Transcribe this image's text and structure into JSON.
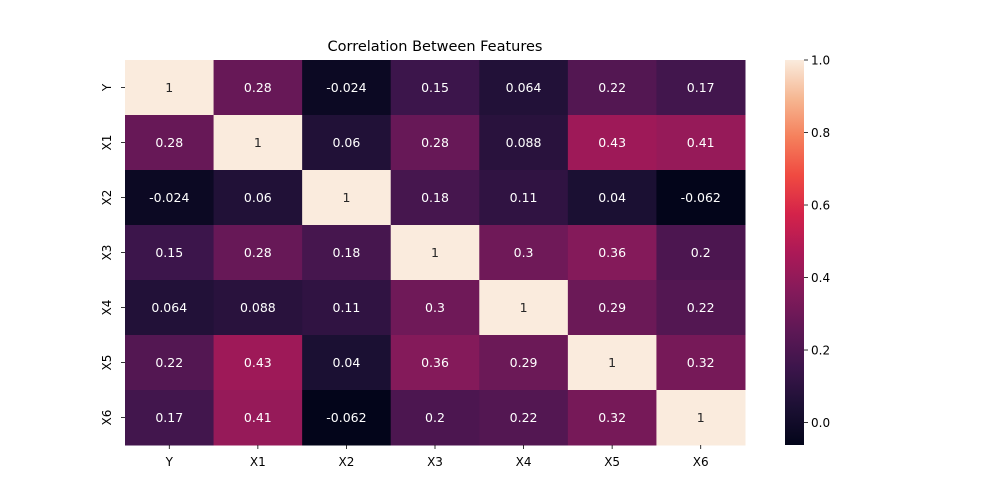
{
  "chart_data": {
    "type": "heatmap",
    "title": "Correlation Between Features",
    "xlabel": "",
    "ylabel": "",
    "x_categories": [
      "Y",
      "X1",
      "X2",
      "X3",
      "X4",
      "X5",
      "X6"
    ],
    "y_categories": [
      "Y",
      "X1",
      "X2",
      "X3",
      "X4",
      "X5",
      "X6"
    ],
    "values": [
      [
        1,
        0.28,
        -0.024,
        0.15,
        0.064,
        0.22,
        0.17
      ],
      [
        0.28,
        1,
        0.06,
        0.28,
        0.088,
        0.43,
        0.41
      ],
      [
        -0.024,
        0.06,
        1,
        0.18,
        0.11,
        0.04,
        -0.062
      ],
      [
        0.15,
        0.28,
        0.18,
        1,
        0.3,
        0.36,
        0.2
      ],
      [
        0.064,
        0.088,
        0.11,
        0.3,
        1,
        0.29,
        0.22
      ],
      [
        0.22,
        0.43,
        0.04,
        0.36,
        0.29,
        1,
        0.32
      ],
      [
        0.17,
        0.41,
        -0.062,
        0.2,
        0.22,
        0.32,
        1
      ]
    ],
    "colorbar": {
      "range": [
        -0.062,
        1.0
      ],
      "ticks": [
        0.0,
        0.2,
        0.4,
        0.6,
        0.8,
        1.0
      ],
      "tick_labels": [
        "0.0",
        "0.2",
        "0.4",
        "0.6",
        "0.8",
        "1.0"
      ],
      "colormap": "rocket"
    },
    "grid": false,
    "annotations_shown": true
  }
}
